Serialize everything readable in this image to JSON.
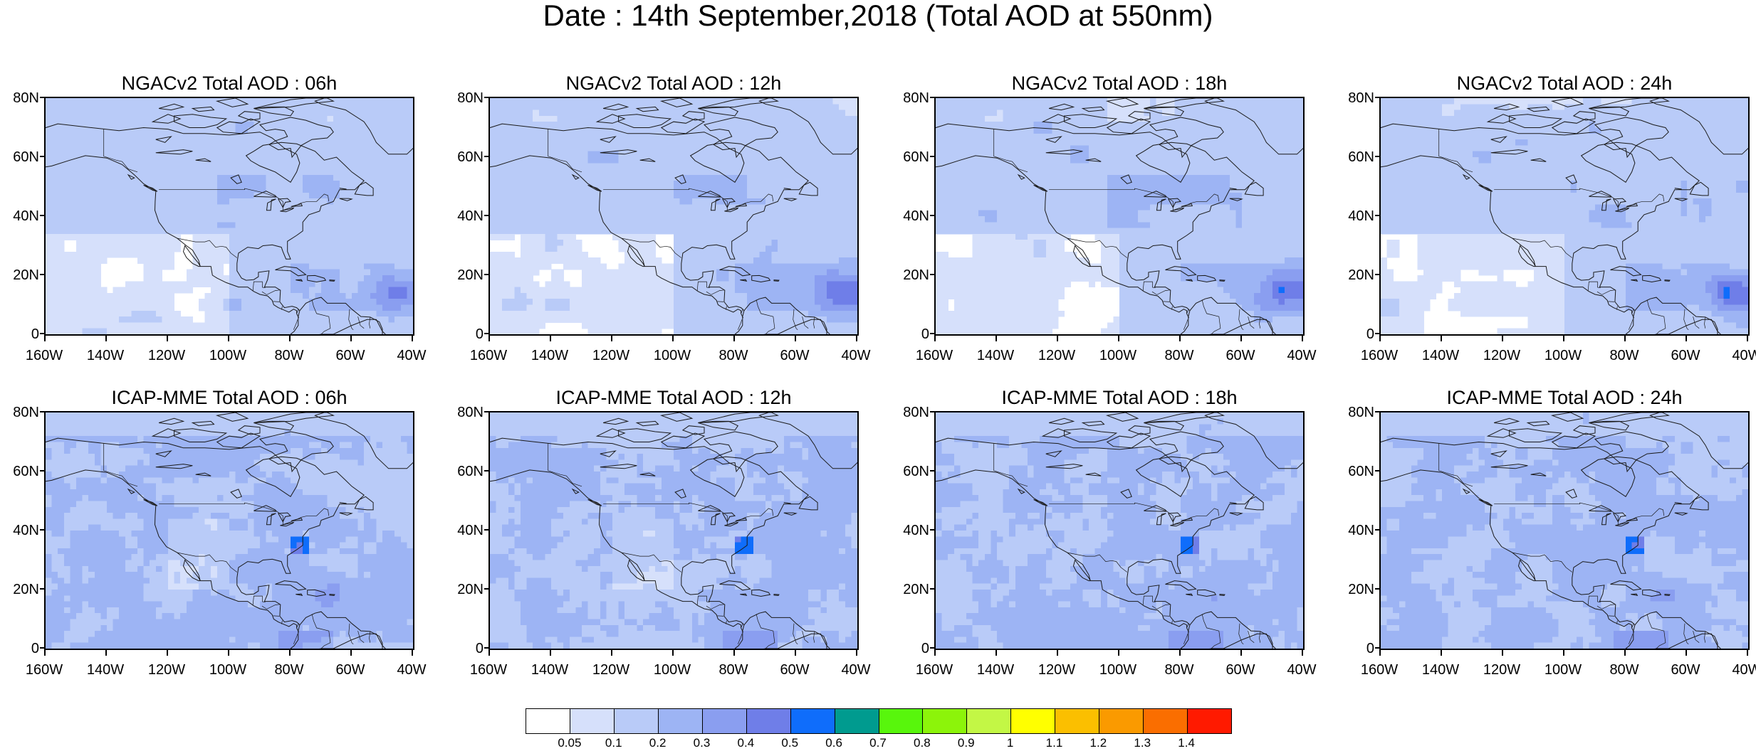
{
  "title": "Date : 14th September,2018 (Total AOD at 550nm)",
  "panels": [
    {
      "title": "NGACv2 Total AOD : 06h"
    },
    {
      "title": "NGACv2 Total AOD : 12h"
    },
    {
      "title": "NGACv2 Total AOD : 18h"
    },
    {
      "title": "NGACv2 Total AOD : 24h"
    },
    {
      "title": "ICAP-MME Total AOD : 06h"
    },
    {
      "title": "ICAP-MME Total AOD : 12h"
    },
    {
      "title": "ICAP-MME Total AOD : 18h"
    },
    {
      "title": "ICAP-MME Total AOD : 24h"
    }
  ],
  "lat_ticks": [
    "80N",
    "60N",
    "40N",
    "20N",
    "0"
  ],
  "lon_ticks": [
    "160W",
    "140W",
    "120W",
    "100W",
    "80W",
    "60W",
    "40W"
  ],
  "map_extent": {
    "lon_min": -160,
    "lon_max": -40,
    "lat_min": 0,
    "lat_max": 80
  },
  "colorbar": {
    "labels": [
      "0.05",
      "0.1",
      "0.2",
      "0.3",
      "0.4",
      "0.5",
      "0.6",
      "0.7",
      "0.8",
      "0.9",
      "1",
      "1.1",
      "1.2",
      "1.3",
      "1.4"
    ],
    "colors": [
      "#ffffff",
      "#d6e0fb",
      "#b9cbf8",
      "#9db4f4",
      "#8a9ef0",
      "#6f7ee8",
      "#0f6dfb",
      "#009b8f",
      "#58f60c",
      "#8cf40a",
      "#c3f745",
      "#ffff00",
      "#fbbf00",
      "#fa9a00",
      "#fa6e00",
      "#ff1a00"
    ]
  }
}
